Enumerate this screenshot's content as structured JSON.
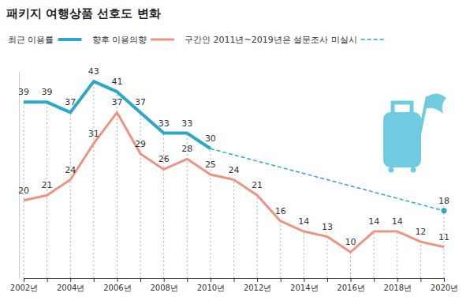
{
  "chart_data": {
    "type": "line",
    "title": "패키지 여행상품 선호도 변화",
    "categories": [
      "2002년",
      null,
      "2004년",
      null,
      "2006년",
      null,
      "2008년",
      null,
      "2010년",
      null,
      "2012년",
      null,
      "2014년",
      null,
      "2016년",
      null,
      "2018년",
      null,
      "2020년"
    ],
    "series": [
      {
        "name": "최근 이용률",
        "color": "#2ba8c8",
        "line_style": "solid",
        "values": [
          39,
          39,
          37,
          43,
          41,
          37,
          33,
          33,
          30,
          null,
          null,
          null,
          null,
          null,
          null,
          null,
          null,
          null,
          18
        ]
      },
      {
        "name": "향후 이용의향",
        "color": "#ef9381",
        "line_style": "solid",
        "values": [
          20,
          21,
          24,
          31,
          37,
          29,
          26,
          28,
          25,
          24,
          21,
          16,
          14,
          13,
          10,
          14,
          14,
          12,
          11
        ]
      },
      {
        "name": "구간인 2011년~2019년은 설문조사 미실시",
        "color": "#2ba8c8",
        "line_style": "dashed",
        "data_labels": false,
        "values": [
          null,
          null,
          null,
          null,
          null,
          null,
          null,
          null,
          30,
          null,
          null,
          null,
          null,
          null,
          null,
          null,
          null,
          null,
          18
        ]
      }
    ],
    "ylim": [
      5,
      45
    ],
    "grid": true,
    "legend": "top-left",
    "data_labels": true,
    "tick_labels": "x"
  }
}
